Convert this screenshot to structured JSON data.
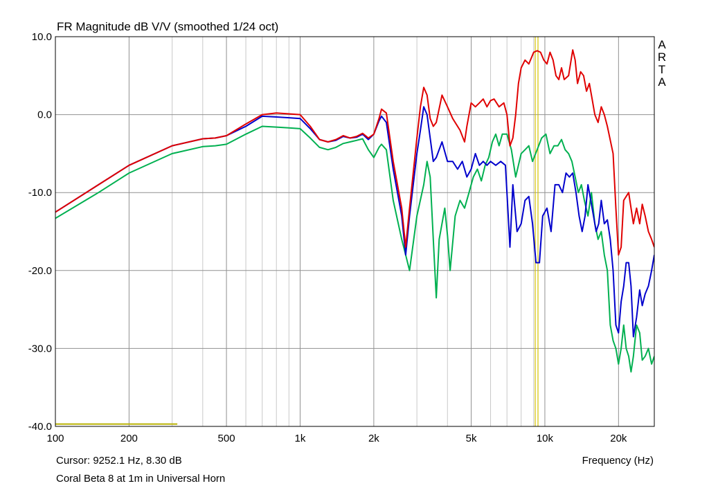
{
  "chart_data": {
    "type": "line",
    "title": "FR Magnitude dB V/V (smoothed 1/24 oct)",
    "xlabel": "Frequency (Hz)",
    "ylabel": "",
    "x_scale": "log",
    "xlim": [
      100,
      28000
    ],
    "ylim": [
      -40,
      10
    ],
    "y_ticks": [
      10,
      0,
      -10,
      -20,
      -30,
      -40
    ],
    "y_tick_labels": [
      "10.0",
      "0.0",
      "-10.0",
      "-20.0",
      "-30.0",
      "-40.0"
    ],
    "x_ticks": [
      100,
      200,
      500,
      1000,
      2000,
      5000,
      10000,
      20000
    ],
    "x_tick_labels": [
      "100",
      "200",
      "500",
      "1k",
      "2k",
      "5k",
      "10k",
      "20k"
    ],
    "grid": true,
    "brand": "ARTA",
    "cursor": {
      "label": "Cursor: 9252.1 Hz, 8.30 dB",
      "frequency": 9252.1,
      "value": 8.3,
      "color": "#d4c200"
    },
    "reference_line": {
      "x": [
        100,
        315
      ],
      "y": -39.7,
      "color": "#b8b000"
    },
    "footer": "Coral Beta 8 at 1m in Universal Horn",
    "series": [
      {
        "color": "#e00000",
        "points": [
          [
            100,
            -12.5
          ],
          [
            150,
            -9
          ],
          [
            200,
            -6.5
          ],
          [
            300,
            -4
          ],
          [
            400,
            -3.1
          ],
          [
            450,
            -3
          ],
          [
            500,
            -2.7
          ],
          [
            600,
            -1.2
          ],
          [
            700,
            0
          ],
          [
            800,
            0.2
          ],
          [
            900,
            0.1
          ],
          [
            1000,
            0
          ],
          [
            1100,
            -1.5
          ],
          [
            1200,
            -3.2
          ],
          [
            1300,
            -3.5
          ],
          [
            1400,
            -3.2
          ],
          [
            1500,
            -2.7
          ],
          [
            1600,
            -3
          ],
          [
            1700,
            -2.8
          ],
          [
            1800,
            -2.4
          ],
          [
            1900,
            -3
          ],
          [
            2000,
            -2.5
          ],
          [
            2100,
            -0.5
          ],
          [
            2150,
            0.7
          ],
          [
            2250,
            0.2
          ],
          [
            2400,
            -6
          ],
          [
            2600,
            -12
          ],
          [
            2700,
            -17
          ],
          [
            2800,
            -12
          ],
          [
            3000,
            -3
          ],
          [
            3100,
            1
          ],
          [
            3200,
            3.5
          ],
          [
            3300,
            2.5
          ],
          [
            3400,
            -0.5
          ],
          [
            3500,
            -1.5
          ],
          [
            3600,
            -1
          ],
          [
            3800,
            2.5
          ],
          [
            4000,
            1
          ],
          [
            4200,
            -0.5
          ],
          [
            4500,
            -2
          ],
          [
            4700,
            -3.5
          ],
          [
            4800,
            -1.5
          ],
          [
            5000,
            1.5
          ],
          [
            5200,
            1
          ],
          [
            5400,
            1.5
          ],
          [
            5600,
            2
          ],
          [
            5800,
            1
          ],
          [
            6000,
            1.8
          ],
          [
            6200,
            2
          ],
          [
            6500,
            1
          ],
          [
            6800,
            1.5
          ],
          [
            7000,
            0
          ],
          [
            7200,
            -4
          ],
          [
            7400,
            -3
          ],
          [
            7600,
            0
          ],
          [
            7800,
            4
          ],
          [
            8000,
            6
          ],
          [
            8300,
            7
          ],
          [
            8600,
            6.5
          ],
          [
            9000,
            8
          ],
          [
            9300,
            8.2
          ],
          [
            9600,
            8
          ],
          [
            9900,
            7
          ],
          [
            10200,
            6.5
          ],
          [
            10500,
            8
          ],
          [
            10800,
            7
          ],
          [
            11100,
            5
          ],
          [
            11400,
            4.5
          ],
          [
            11700,
            6
          ],
          [
            12000,
            4.5
          ],
          [
            12500,
            5
          ],
          [
            13000,
            8.3
          ],
          [
            13300,
            7
          ],
          [
            13600,
            4
          ],
          [
            14000,
            5.5
          ],
          [
            14400,
            5
          ],
          [
            14800,
            3
          ],
          [
            15200,
            4
          ],
          [
            15600,
            2
          ],
          [
            16000,
            0
          ],
          [
            16500,
            -1
          ],
          [
            17000,
            1
          ],
          [
            17500,
            0
          ],
          [
            18000,
            -1.5
          ],
          [
            19000,
            -5
          ],
          [
            19500,
            -12
          ],
          [
            20000,
            -18
          ],
          [
            20500,
            -17
          ],
          [
            21000,
            -11
          ],
          [
            21500,
            -10.5
          ],
          [
            22000,
            -10
          ],
          [
            22500,
            -12
          ],
          [
            23000,
            -14
          ],
          [
            23700,
            -12
          ],
          [
            24400,
            -14
          ],
          [
            25000,
            -11.5
          ],
          [
            25700,
            -13
          ],
          [
            26500,
            -15
          ],
          [
            27300,
            -16
          ],
          [
            28000,
            -17
          ]
        ]
      },
      {
        "color": "#0000cc",
        "points": [
          [
            100,
            -12.5
          ],
          [
            150,
            -9
          ],
          [
            200,
            -6.5
          ],
          [
            300,
            -4
          ],
          [
            400,
            -3.1
          ],
          [
            450,
            -3
          ],
          [
            500,
            -2.7
          ],
          [
            600,
            -1.5
          ],
          [
            700,
            -0.2
          ],
          [
            800,
            -0.3
          ],
          [
            900,
            -0.4
          ],
          [
            1000,
            -0.5
          ],
          [
            1100,
            -1.8
          ],
          [
            1200,
            -3.2
          ],
          [
            1300,
            -3.5
          ],
          [
            1400,
            -3.3
          ],
          [
            1500,
            -2.8
          ],
          [
            1600,
            -3
          ],
          [
            1700,
            -2.9
          ],
          [
            1800,
            -2.5
          ],
          [
            1900,
            -3.2
          ],
          [
            2000,
            -2.5
          ],
          [
            2100,
            -0.8
          ],
          [
            2150,
            -0.2
          ],
          [
            2250,
            -1
          ],
          [
            2400,
            -7
          ],
          [
            2600,
            -13
          ],
          [
            2700,
            -18
          ],
          [
            2800,
            -13
          ],
          [
            3000,
            -5
          ],
          [
            3100,
            -2
          ],
          [
            3200,
            1
          ],
          [
            3300,
            0
          ],
          [
            3400,
            -3
          ],
          [
            3500,
            -6
          ],
          [
            3600,
            -5.5
          ],
          [
            3800,
            -3.5
          ],
          [
            4000,
            -6
          ],
          [
            4200,
            -6
          ],
          [
            4400,
            -7
          ],
          [
            4600,
            -6
          ],
          [
            4800,
            -8
          ],
          [
            5000,
            -7
          ],
          [
            5200,
            -5
          ],
          [
            5400,
            -6.5
          ],
          [
            5600,
            -6
          ],
          [
            5800,
            -6.5
          ],
          [
            6000,
            -6
          ],
          [
            6300,
            -6.5
          ],
          [
            6600,
            -6
          ],
          [
            6900,
            -6.5
          ],
          [
            7200,
            -17
          ],
          [
            7400,
            -9
          ],
          [
            7700,
            -15
          ],
          [
            8000,
            -14
          ],
          [
            8300,
            -11
          ],
          [
            8600,
            -10.5
          ],
          [
            8900,
            -14
          ],
          [
            9200,
            -19
          ],
          [
            9500,
            -19
          ],
          [
            9800,
            -13
          ],
          [
            10200,
            -12
          ],
          [
            10600,
            -15
          ],
          [
            11000,
            -9
          ],
          [
            11400,
            -9
          ],
          [
            11800,
            -10
          ],
          [
            12200,
            -7.5
          ],
          [
            12600,
            -8
          ],
          [
            13000,
            -7.5
          ],
          [
            13400,
            -10
          ],
          [
            13800,
            -13
          ],
          [
            14200,
            -15
          ],
          [
            14600,
            -13
          ],
          [
            15000,
            -9
          ],
          [
            15400,
            -11
          ],
          [
            15800,
            -13
          ],
          [
            16200,
            -15
          ],
          [
            16600,
            -14
          ],
          [
            17000,
            -11
          ],
          [
            17500,
            -14
          ],
          [
            18000,
            -13.5
          ],
          [
            18500,
            -16
          ],
          [
            19000,
            -20
          ],
          [
            19500,
            -27
          ],
          [
            20000,
            -28
          ],
          [
            20500,
            -24
          ],
          [
            21000,
            -22
          ],
          [
            21500,
            -19
          ],
          [
            22000,
            -19
          ],
          [
            22500,
            -22
          ],
          [
            23000,
            -28.5
          ],
          [
            23700,
            -26
          ],
          [
            24400,
            -22.5
          ],
          [
            25000,
            -24.5
          ],
          [
            25700,
            -23
          ],
          [
            26500,
            -22
          ],
          [
            27300,
            -20
          ],
          [
            28000,
            -18
          ]
        ]
      },
      {
        "color": "#00b050",
        "points": [
          [
            100,
            -13.3
          ],
          [
            150,
            -10
          ],
          [
            200,
            -7.5
          ],
          [
            300,
            -5
          ],
          [
            400,
            -4.1
          ],
          [
            450,
            -4
          ],
          [
            500,
            -3.8
          ],
          [
            600,
            -2.5
          ],
          [
            700,
            -1.5
          ],
          [
            800,
            -1.6
          ],
          [
            900,
            -1.7
          ],
          [
            1000,
            -1.8
          ],
          [
            1100,
            -3
          ],
          [
            1200,
            -4.2
          ],
          [
            1300,
            -4.5
          ],
          [
            1400,
            -4.2
          ],
          [
            1500,
            -3.7
          ],
          [
            1600,
            -3.5
          ],
          [
            1700,
            -3.3
          ],
          [
            1800,
            -3.1
          ],
          [
            1900,
            -4.5
          ],
          [
            2000,
            -5.5
          ],
          [
            2100,
            -4.2
          ],
          [
            2150,
            -3.8
          ],
          [
            2250,
            -4.5
          ],
          [
            2400,
            -11
          ],
          [
            2600,
            -16
          ],
          [
            2700,
            -18
          ],
          [
            2800,
            -20
          ],
          [
            3000,
            -13
          ],
          [
            3200,
            -9
          ],
          [
            3300,
            -6
          ],
          [
            3400,
            -8
          ],
          [
            3500,
            -16
          ],
          [
            3600,
            -23.5
          ],
          [
            3700,
            -16
          ],
          [
            3900,
            -12
          ],
          [
            4000,
            -15.5
          ],
          [
            4100,
            -20
          ],
          [
            4300,
            -13
          ],
          [
            4500,
            -11
          ],
          [
            4700,
            -12
          ],
          [
            4900,
            -10
          ],
          [
            5100,
            -8
          ],
          [
            5300,
            -7
          ],
          [
            5500,
            -8.5
          ],
          [
            5700,
            -6.5
          ],
          [
            5900,
            -5.5
          ],
          [
            6100,
            -3.5
          ],
          [
            6300,
            -2.5
          ],
          [
            6500,
            -4
          ],
          [
            6700,
            -2.5
          ],
          [
            7000,
            -2.5
          ],
          [
            7300,
            -4.5
          ],
          [
            7600,
            -8
          ],
          [
            8000,
            -5
          ],
          [
            8300,
            -4.5
          ],
          [
            8600,
            -4
          ],
          [
            8900,
            -6
          ],
          [
            9300,
            -4.5
          ],
          [
            9700,
            -3
          ],
          [
            10100,
            -2.5
          ],
          [
            10500,
            -5
          ],
          [
            10900,
            -4
          ],
          [
            11300,
            -4
          ],
          [
            11700,
            -3.2
          ],
          [
            12100,
            -4.5
          ],
          [
            12500,
            -5
          ],
          [
            12900,
            -6
          ],
          [
            13300,
            -8
          ],
          [
            13700,
            -10
          ],
          [
            14100,
            -9
          ],
          [
            14500,
            -11
          ],
          [
            15000,
            -13
          ],
          [
            15500,
            -10
          ],
          [
            16000,
            -14
          ],
          [
            16500,
            -16
          ],
          [
            17000,
            -15
          ],
          [
            17500,
            -18
          ],
          [
            18000,
            -20
          ],
          [
            18500,
            -27
          ],
          [
            19000,
            -29
          ],
          [
            19500,
            -30
          ],
          [
            20000,
            -32
          ],
          [
            20500,
            -30
          ],
          [
            21000,
            -27
          ],
          [
            21500,
            -30
          ],
          [
            22000,
            -31
          ],
          [
            22500,
            -33
          ],
          [
            23000,
            -31
          ],
          [
            23700,
            -27
          ],
          [
            24400,
            -28
          ],
          [
            25000,
            -31.5
          ],
          [
            25700,
            -31
          ],
          [
            26500,
            -30
          ],
          [
            27300,
            -32
          ],
          [
            28000,
            -31
          ]
        ]
      }
    ]
  }
}
